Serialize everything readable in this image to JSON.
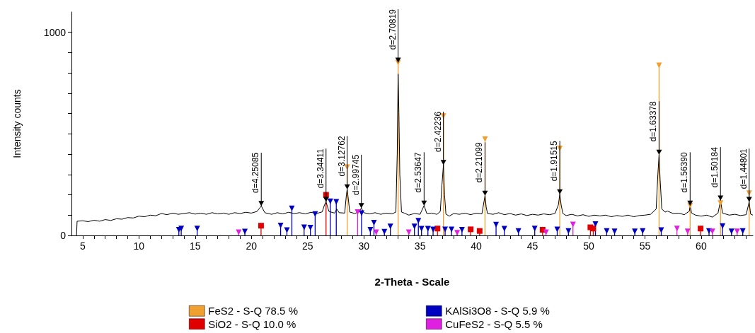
{
  "chart_data": {
    "type": "line",
    "xlabel": "2-Theta - Scale",
    "ylabel": "Intensity counts",
    "xlim": [
      4,
      64.6
    ],
    "ylim": [
      0,
      1100
    ],
    "legend": "bottom",
    "xticks": [
      5,
      {
        "value": 6,
        "label": null
      },
      {
        "value": 7,
        "label": null
      },
      {
        "value": 8,
        "label": null
      },
      {
        "value": 9,
        "label": null
      },
      10,
      {
        "value": 11,
        "label": null
      },
      {
        "value": 12,
        "label": null
      },
      {
        "value": 13,
        "label": null
      },
      {
        "value": 14,
        "label": null
      },
      15,
      {
        "value": 16,
        "label": null
      },
      {
        "value": 17,
        "label": null
      },
      {
        "value": 18,
        "label": null
      },
      {
        "value": 19,
        "label": null
      },
      20,
      {
        "value": 21,
        "label": null
      },
      {
        "value": 22,
        "label": null
      },
      {
        "value": 23,
        "label": null
      },
      {
        "value": 24,
        "label": null
      },
      25,
      {
        "value": 26,
        "label": null
      },
      {
        "value": 27,
        "label": null
      },
      {
        "value": 28,
        "label": null
      },
      {
        "value": 29,
        "label": null
      },
      30,
      {
        "value": 31,
        "label": null
      },
      {
        "value": 32,
        "label": null
      },
      {
        "value": 33,
        "label": null
      },
      {
        "value": 34,
        "label": null
      },
      35,
      {
        "value": 36,
        "label": null
      },
      {
        "value": 37,
        "label": null
      },
      {
        "value": 38,
        "label": null
      },
      {
        "value": 39,
        "label": null
      },
      40,
      {
        "value": 41,
        "label": null
      },
      {
        "value": 42,
        "label": null
      },
      {
        "value": 43,
        "label": null
      },
      {
        "value": 44,
        "label": null
      },
      45,
      {
        "value": 46,
        "label": null
      },
      {
        "value": 47,
        "label": null
      },
      {
        "value": 48,
        "label": null
      },
      {
        "value": 49,
        "label": null
      },
      50,
      {
        "value": 51,
        "label": null
      },
      {
        "value": 52,
        "label": null
      },
      {
        "value": 53,
        "label": null
      },
      {
        "value": 54,
        "label": null
      },
      55,
      {
        "value": 56,
        "label": null
      },
      {
        "value": 57,
        "label": null
      },
      {
        "value": 58,
        "label": null
      },
      {
        "value": 59,
        "label": null
      },
      60,
      {
        "value": 61,
        "label": null
      },
      {
        "value": 62,
        "label": null
      },
      {
        "value": 63,
        "label": null
      },
      {
        "value": 64,
        "label": null
      }
    ],
    "yticks": [
      0,
      {
        "value": 100,
        "label": null
      },
      {
        "value": 200,
        "label": null
      },
      {
        "value": 300,
        "label": null
      },
      {
        "value": 400,
        "label": null
      },
      {
        "value": 500,
        "label": null
      },
      {
        "value": 600,
        "label": null
      },
      {
        "value": 700,
        "label": null
      },
      {
        "value": 800,
        "label": null
      },
      {
        "value": 900,
        "label": null
      },
      1000
    ],
    "series": [
      {
        "color": "#000000",
        "marker": "none",
        "x": [
          4.45,
          4.5,
          5,
          5.5,
          6,
          6.5,
          7,
          7.5,
          8,
          8.5,
          9,
          9.5,
          10,
          10.5,
          11,
          11.5,
          12,
          12.5,
          13,
          13.5,
          14,
          14.5,
          15,
          15.5,
          16,
          16.5,
          17,
          17.5,
          18,
          18.5,
          19,
          19.5,
          20,
          20.5,
          20.88,
          21.2,
          21.8,
          22.3,
          22.8,
          23.3,
          23.8,
          24.3,
          24.8,
          25.3,
          25.8,
          26.3,
          26.5,
          26.64,
          26.75,
          26.9,
          27.4,
          27.6,
          27.8,
          28.3,
          28.45,
          28.52,
          28.6,
          28.75,
          29.2,
          29.6,
          29.78,
          30,
          30.5,
          31,
          31.5,
          32,
          32.5,
          32.85,
          32.97,
          33.05,
          33.12,
          33.2,
          33.35,
          33.6,
          34,
          34.5,
          35,
          35.36,
          35.6,
          36,
          36.5,
          36.8,
          36.95,
          37.08,
          37.18,
          37.3,
          37.6,
          38,
          38.5,
          39,
          39.5,
          40,
          40.5,
          40.7,
          40.78,
          40.88,
          41,
          41.5,
          42,
          42.5,
          43,
          43.5,
          44,
          44.5,
          45,
          45.5,
          46,
          46.5,
          47,
          47.3,
          47.43,
          47.55,
          47.7,
          48,
          48.5,
          49,
          49.5,
          50,
          50.5,
          51,
          51.5,
          52,
          52.5,
          53,
          53.5,
          54,
          54.5,
          55,
          55.5,
          56,
          56.15,
          56.26,
          56.35,
          56.5,
          56.8,
          57,
          57.5,
          58,
          58.5,
          58.95,
          59.02,
          59.15,
          59.5,
          60,
          60.5,
          61,
          61.5,
          61.72,
          61.9,
          62.5,
          63,
          63.5,
          64,
          64.27,
          64.4,
          64.6
        ],
        "values": [
          0,
          70,
          72,
          68,
          75,
          70,
          78,
          74,
          82,
          80,
          88,
          86,
          95,
          92,
          100,
          97,
          108,
          102,
          110,
          104,
          108,
          112,
          105,
          110,
          104,
          112,
          106,
          110,
          104,
          112,
          108,
          114,
          110,
          118,
          145,
          112,
          104,
          112,
          106,
          114,
          108,
          112,
          106,
          114,
          108,
          116,
          150,
          165,
          145,
          118,
          110,
          130,
          112,
          110,
          200,
          227,
          190,
          115,
          108,
          118,
          135,
          112,
          106,
          112,
          104,
          110,
          106,
          115,
          400,
          795,
          605,
          300,
          115,
          110,
          100,
          108,
          104,
          147,
          108,
          110,
          104,
          118,
          250,
          347,
          200,
          105,
          95,
          108,
          104,
          110,
          102,
          110,
          106,
          170,
          196,
          140,
          108,
          104,
          112,
          102,
          108,
          100,
          106,
          98,
          104,
          100,
          106,
          102,
          108,
          150,
          203,
          150,
          108,
          98,
          104,
          96,
          102,
          94,
          100,
          96,
          100,
          92,
          98,
          94,
          100,
          92,
          98,
          100,
          104,
          130,
          300,
          398,
          277,
          130,
          115,
          120,
          108,
          110,
          102,
          120,
          147,
          110,
          100,
          95,
          100,
          90,
          110,
          172,
          110,
          100,
          104,
          98,
          102,
          165,
          105,
          100
        ]
      },
      {
        "name": "FeS2 - S-Q 78.5 %",
        "type": "lollipop",
        "color": "#f0a030",
        "marker": "triangle",
        "x": [
          28.52,
          33.05,
          37.08,
          40.78,
          47.43,
          56.26,
          59.02,
          61.72,
          64.27
        ],
        "values": [
          336,
          851,
          587,
          474,
          428,
          837,
          147,
          159,
          208
        ]
      },
      {
        "name": "SiO2 - S-Q 10.0 %",
        "type": "lollipop",
        "color": "#e00000",
        "marker": "square",
        "x": [
          20.86,
          26.64,
          36.55,
          39.5,
          40.3,
          45.9,
          50.15,
          50.4,
          59.95
        ],
        "values": [
          48,
          200,
          34,
          30,
          22,
          28,
          40,
          34,
          34
        ]
      },
      {
        "name": "KAlSi3O8 - S-Q 5.9 %",
        "type": "lollipop",
        "color": "#0000c0",
        "marker": "triangle",
        "x": [
          13.55,
          13.76,
          15.18,
          19.42,
          22.6,
          23.16,
          23.6,
          24.69,
          25.25,
          25.67,
          27.02,
          27.55,
          29.8,
          30.58,
          30.9,
          31.83,
          32.36,
          34.5,
          34.85,
          35.13,
          35.7,
          36.16,
          37.23,
          37.8,
          38.73,
          41.76,
          42.5,
          43.75,
          45.2,
          47.2,
          48.2,
          50.6,
          51.6,
          52.3,
          54.1,
          54.8,
          56.45,
          60.7,
          61.9,
          62.7,
          63.7
        ],
        "values": [
          28,
          34,
          34,
          19,
          49,
          26,
          133,
          40,
          38,
          105,
          168,
          165,
          110,
          28,
          63,
          18,
          44,
          44,
          72,
          33,
          33,
          30,
          30,
          30,
          28,
          53,
          33,
          22,
          34,
          30,
          22,
          56,
          22,
          20,
          20,
          22,
          26,
          22,
          46,
          20,
          22
        ]
      },
      {
        "name": "CuFeS2 - S-Q 5.5 %",
        "type": "lollipop",
        "color": "#e020e0",
        "marker": "triangle",
        "x": [
          18.87,
          29.45,
          31.1,
          34.0,
          38.3,
          46.2,
          48.6,
          57.85,
          58.8,
          61.0,
          63.2
        ],
        "values": [
          16,
          115,
          16,
          16,
          13,
          16,
          54,
          34,
          20,
          20,
          20
        ]
      }
    ],
    "annotations": [
      {
        "text": "d=4.25085",
        "x": 20.88,
        "y": 145
      },
      {
        "text": "d=3.34411",
        "x": 26.64,
        "y": 165
      },
      {
        "text": "d=3.12762",
        "x": 28.52,
        "y": 227
      },
      {
        "text": "d=2.99745",
        "x": 29.78,
        "y": 135
      },
      {
        "text": "d=2.70819",
        "x": 33.05,
        "y": 851
      },
      {
        "text": "d=2.53647",
        "x": 35.36,
        "y": 147
      },
      {
        "text": "d=2.42236",
        "x": 37.08,
        "y": 347
      },
      {
        "text": "d=2.21099",
        "x": 40.78,
        "y": 196
      },
      {
        "text": "d=1.91515",
        "x": 47.43,
        "y": 203
      },
      {
        "text": "d=1.63378",
        "x": 56.26,
        "y": 398
      },
      {
        "text": "d=1.56390",
        "x": 59.02,
        "y": 147
      },
      {
        "text": "d=1.50184",
        "x": 61.72,
        "y": 172
      },
      {
        "text": "d=1.44801",
        "x": 64.27,
        "y": 165
      }
    ]
  }
}
